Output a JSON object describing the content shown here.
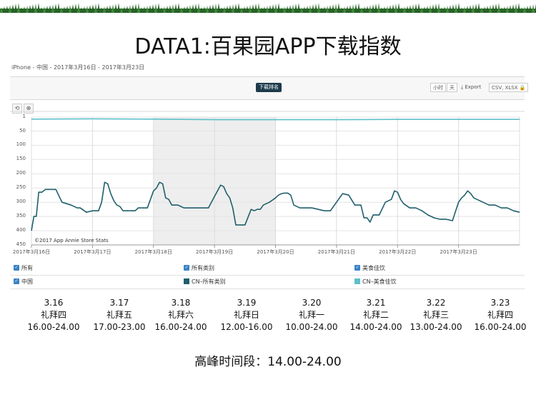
{
  "slide_title": "DATA1:百果园APP下载指数",
  "subtitle": "iPhone - 中国 - 2017年3月16日 - 2017年3月23日",
  "toolbar": {
    "active_tab": "下载排名",
    "hour_button": "小时",
    "day_button": "天",
    "export_label": "Export",
    "format_button": "CSV, XLSX",
    "undo_icon": "undo-icon",
    "zoom_icon": "zoom-icon"
  },
  "copyright": "©2017 App Annie Store Stats",
  "legend": {
    "row1": [
      "所有",
      "所有类别",
      "美食佳饮"
    ],
    "row2": [
      "中国",
      "CN–所有类别",
      "CN–美食佳饮"
    ]
  },
  "colors": {
    "all_categories": "#1f5f6b",
    "food_drink": "#5cc0c9",
    "weekend_shade": "#eeeeee",
    "checkbox": "#3b82c4"
  },
  "days": [
    {
      "date": "3.16",
      "weekday": "礼拜四",
      "peak": "16.00-24.00"
    },
    {
      "date": "3.17",
      "weekday": "礼拜五",
      "peak": "17.00-23.00"
    },
    {
      "date": "3.18",
      "weekday": "礼拜六",
      "peak": "16.00-24.00"
    },
    {
      "date": "3.19",
      "weekday": "礼拜日",
      "peak": "12.00-16.00"
    },
    {
      "date": "3.20",
      "weekday": "礼拜一",
      "peak": "10.00-24.00"
    },
    {
      "date": "3.21",
      "weekday": "礼拜二",
      "peak": "14.00-24.00"
    },
    {
      "date": "3.22",
      "weekday": "礼拜三",
      "peak": "13.00-24.00"
    },
    {
      "date": "3.23",
      "weekday": "礼拜四",
      "peak": "16.00-24.00"
    }
  ],
  "peak_summary": "高峰时间段：14.00-24.00",
  "chart_data": {
    "type": "line",
    "y_reversed": true,
    "ylim": [
      1,
      450
    ],
    "y_ticks": [
      1,
      50,
      100,
      150,
      200,
      250,
      300,
      350,
      400,
      450
    ],
    "x_tick_labels": [
      "2017年3月16日",
      "2017年3月17日",
      "2017年3月18日",
      "2017年3月19日",
      "2017年3月20日",
      "2017年3月21日",
      "2017年3月22日",
      "2017年3月23日"
    ],
    "xlim": [
      0,
      8
    ],
    "shaded_range": [
      2,
      4
    ],
    "grid": true,
    "series": [
      {
        "name": "CN–所有类别",
        "x": [
          0,
          0.04,
          0.08,
          0.12,
          0.17,
          0.23,
          0.3,
          0.4,
          0.5,
          0.65,
          0.75,
          0.8,
          0.9,
          1.0,
          1.1,
          1.15,
          1.2,
          1.25,
          1.3,
          1.35,
          1.4,
          1.45,
          1.5,
          1.55,
          1.6,
          1.65,
          1.7,
          1.75,
          1.8,
          1.9,
          2.0,
          2.05,
          2.1,
          2.15,
          2.2,
          2.25,
          2.3,
          2.35,
          2.4,
          2.5,
          2.6,
          2.7,
          2.8,
          2.9,
          3.0,
          3.05,
          3.1,
          3.15,
          3.2,
          3.25,
          3.3,
          3.35,
          3.4,
          3.5,
          3.6,
          3.65,
          3.7,
          3.75,
          3.8,
          3.9,
          4.0,
          4.05,
          4.1,
          4.15,
          4.2,
          4.25,
          4.3,
          4.4,
          4.5,
          4.6,
          4.7,
          4.8,
          4.9,
          5.0,
          5.05,
          5.1,
          5.2,
          5.3,
          5.4,
          5.45,
          5.5,
          5.55,
          5.6,
          5.7,
          5.8,
          5.9,
          5.95,
          6.0,
          6.05,
          6.1,
          6.2,
          6.3,
          6.4,
          6.5,
          6.6,
          6.7,
          6.8,
          6.9,
          7.0,
          7.05,
          7.1,
          7.15,
          7.2,
          7.25,
          7.3,
          7.4,
          7.5,
          7.6,
          7.7,
          7.8,
          7.9,
          8.0
        ],
        "y": [
          400,
          350,
          350,
          265,
          265,
          255,
          255,
          255,
          300,
          310,
          320,
          320,
          335,
          330,
          330,
          300,
          230,
          235,
          270,
          295,
          310,
          315,
          330,
          330,
          330,
          330,
          330,
          320,
          320,
          320,
          260,
          250,
          230,
          235,
          285,
          290,
          310,
          310,
          310,
          320,
          320,
          320,
          320,
          320,
          280,
          260,
          240,
          245,
          270,
          285,
          320,
          380,
          380,
          380,
          325,
          330,
          325,
          325,
          310,
          300,
          285,
          275,
          270,
          268,
          268,
          275,
          310,
          320,
          320,
          320,
          325,
          330,
          330,
          300,
          285,
          270,
          275,
          310,
          310,
          355,
          355,
          370,
          345,
          345,
          300,
          290,
          260,
          265,
          290,
          305,
          320,
          320,
          330,
          345,
          355,
          360,
          360,
          365,
          300,
          285,
          275,
          260,
          270,
          285,
          290,
          300,
          310,
          310,
          320,
          320,
          330,
          335
        ]
      },
      {
        "name": "CN–美食佳饮",
        "x": [
          0,
          1,
          2,
          3,
          4,
          5,
          6,
          7,
          8
        ],
        "y": [
          8,
          7,
          8,
          10,
          10,
          10,
          9,
          9,
          9
        ]
      }
    ]
  }
}
